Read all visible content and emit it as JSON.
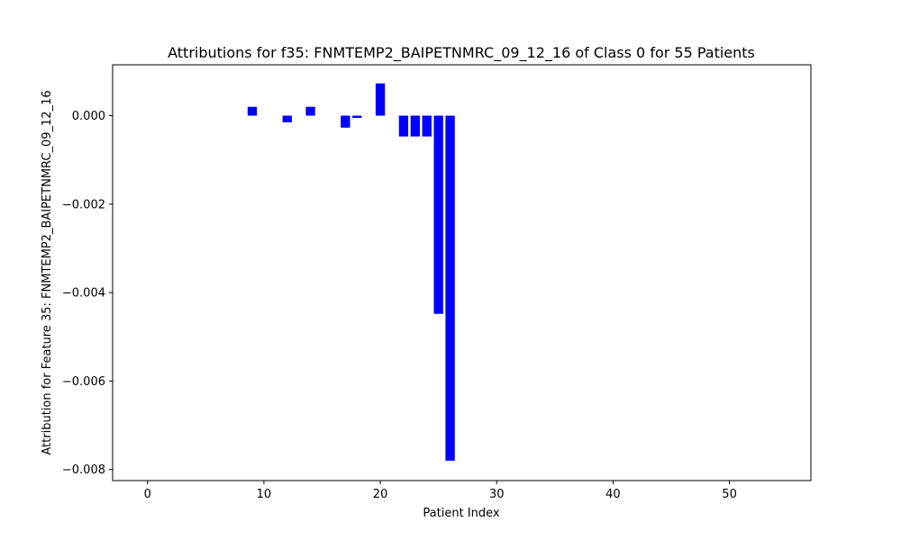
{
  "chart_data": {
    "type": "bar",
    "title": "Attributions for f35: FNMTEMP2_BAIPETNMRC_09_12_16 of Class 0 for 55 Patients",
    "xlabel": "Patient Index",
    "ylabel": "Attribution for Feature 35: FNMTEMP2_BAIPETNMRC_09_12_16",
    "xlim": [
      -3,
      57
    ],
    "ylim": [
      -0.00825,
      0.00115
    ],
    "xticks": [
      0,
      10,
      20,
      30,
      40,
      50
    ],
    "yticks": [
      0.0,
      -0.002,
      -0.004,
      -0.006,
      -0.008
    ],
    "ytick_labels": [
      "0.000",
      "−0.002",
      "−0.004",
      "−0.006",
      "−0.008"
    ],
    "bar_color": "#0000ff",
    "grid": false,
    "bars": [
      {
        "x": 9,
        "value": 0.0002
      },
      {
        "x": 12,
        "value": -0.00015
      },
      {
        "x": 14,
        "value": 0.0002
      },
      {
        "x": 17,
        "value": -0.00027
      },
      {
        "x": 18,
        "value": -5e-05
      },
      {
        "x": 20,
        "value": 0.00073
      },
      {
        "x": 22,
        "value": -0.00047
      },
      {
        "x": 23,
        "value": -0.00047
      },
      {
        "x": 24,
        "value": -0.00047
      },
      {
        "x": 25,
        "value": -0.00448
      },
      {
        "x": 26,
        "value": -0.0078
      }
    ]
  }
}
